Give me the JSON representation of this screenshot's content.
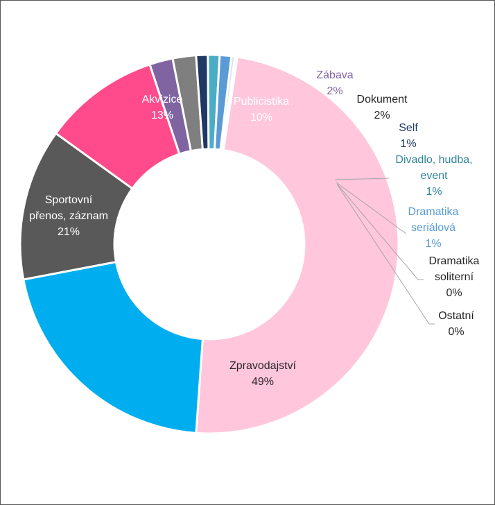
{
  "chart_data": {
    "type": "donut",
    "title": "",
    "slices": [
      {
        "name": "Zpravodajství",
        "value": 49,
        "pct_label": "49%",
        "color": "#ffc6dc",
        "label_color": "#262626"
      },
      {
        "name": "Sportovní přenos, záznam",
        "name_lines": [
          "Sportovní",
          "přenos, záznam"
        ],
        "value": 21,
        "pct_label": "21%",
        "color": "#00aeef",
        "label_color": "#ffffff"
      },
      {
        "name": "Akvizice",
        "value": 13,
        "pct_label": "13%",
        "color": "#595959",
        "label_color": "#ffffff"
      },
      {
        "name": "Publicistika",
        "value": 10,
        "pct_label": "10%",
        "color": "#ff4b8b",
        "label_color": "#ffffff"
      },
      {
        "name": "Zábava",
        "value": 2,
        "pct_label": "2%",
        "color": "#8064a2",
        "label_color": "#8064a2"
      },
      {
        "name": "Dokument",
        "value": 2,
        "pct_label": "2%",
        "color": "#7f7f7f",
        "label_color": "#262626"
      },
      {
        "name": "Self",
        "value": 1,
        "pct_label": "1%",
        "color": "#1f3864",
        "label_color": "#1f3864"
      },
      {
        "name": "Divadlo, hudba, event",
        "name_lines": [
          "Divadlo, hudba,",
          "event"
        ],
        "value": 1,
        "pct_label": "1%",
        "color": "#4bacc6",
        "label_color": "#31849b"
      },
      {
        "name": "Dramatika seriálová",
        "name_lines": [
          "Dramatika",
          "seriálová"
        ],
        "value": 1,
        "pct_label": "1%",
        "color": "#5b9bd5",
        "label_color": "#5b9bd5"
      },
      {
        "name": "Dramatika soliterní",
        "name_lines": [
          "Dramatika",
          "soliterní"
        ],
        "value": 0.3,
        "pct_label": "0%",
        "color": "#d9e1f2",
        "label_color": "#262626"
      },
      {
        "name": "Ostatní",
        "value": 0.2,
        "pct_label": "0%",
        "color": "#e7e6e6",
        "label_color": "#262626"
      }
    ],
    "legend": "none",
    "data_labels": "category and percentage",
    "leader_line_color": "#a6a6a6"
  }
}
